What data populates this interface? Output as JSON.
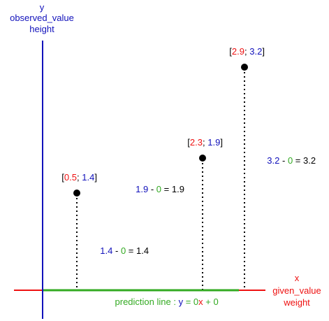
{
  "colors": {
    "x_axis": "#ee1111",
    "y_axis": "#1111bb",
    "prediction": "#33aa22",
    "point": "#000000",
    "text": "#000000"
  },
  "y_axis_labels": [
    "y",
    "observed_value",
    "height"
  ],
  "x_axis_labels": [
    "x",
    "given_value",
    "weight"
  ],
  "prediction": {
    "prefix": "prediction line : ",
    "y": "y",
    "eq": " = ",
    "slope": "0",
    "x": "x",
    "plus": " + ",
    "intercept": "0"
  },
  "points": [
    {
      "x": 0.5,
      "y": 1.4,
      "label": {
        "open": "[",
        "x": "0.5",
        "sep": "; ",
        "y": "1.4",
        "close": "]"
      },
      "residual": {
        "obs": "1.4",
        "minus": " - ",
        "pred": "0",
        "eq": " = ",
        "res": "1.4"
      }
    },
    {
      "x": 2.3,
      "y": 1.9,
      "label": {
        "open": "[",
        "x": "2.3",
        "sep": "; ",
        "y": "1.9",
        "close": "]"
      },
      "residual": {
        "obs": "1.9",
        "minus": " - ",
        "pred": "0",
        "eq": " = ",
        "res": "1.9"
      }
    },
    {
      "x": 2.9,
      "y": 3.2,
      "label": {
        "open": "[",
        "x": "2.9",
        "sep": "; ",
        "y": "3.2",
        "close": "]"
      },
      "residual": {
        "obs": "3.2",
        "minus": " - ",
        "pred": "0",
        "eq": " = ",
        "res": "3.2"
      }
    }
  ]
}
